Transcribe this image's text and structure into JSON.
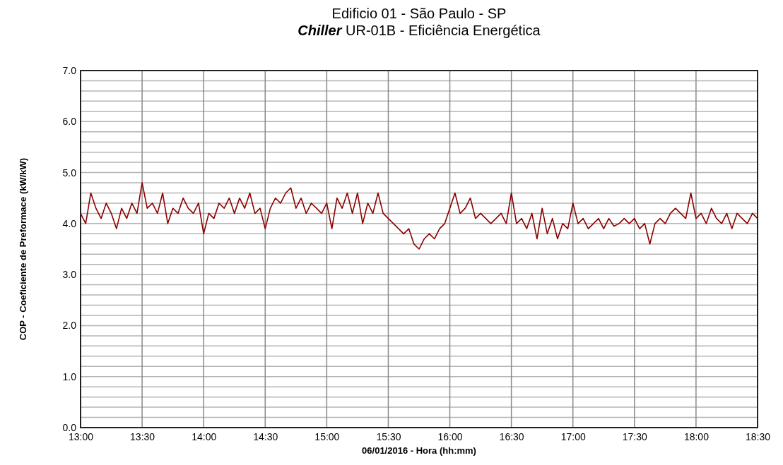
{
  "chart_data": {
    "type": "line",
    "title": "Edificio 01 - São Paulo - SP",
    "subtitle": "Chiller UR-01B - Eficiência Energética",
    "xlabel": "06/01/2016 -  Hora (hh:mm)",
    "ylabel": "COP - Coeficiente de Preformace (kW/kW)",
    "x": [
      13,
      13.0417,
      13.0833,
      13.125,
      13.1667,
      13.2083,
      13.25,
      13.2917,
      13.3333,
      13.375,
      13.4167,
      13.4583,
      13.5,
      13.5417,
      13.5833,
      13.625,
      13.6667,
      13.7083,
      13.75,
      13.7917,
      13.8333,
      13.875,
      13.9167,
      13.9583,
      14,
      14.0417,
      14.0833,
      14.125,
      14.1667,
      14.2083,
      14.25,
      14.2917,
      14.3333,
      14.375,
      14.4167,
      14.4583,
      14.5,
      14.5417,
      14.5833,
      14.625,
      14.6667,
      14.7083,
      14.75,
      14.7917,
      14.8333,
      14.875,
      14.9167,
      14.9583,
      15,
      15.0417,
      15.0833,
      15.125,
      15.1667,
      15.2083,
      15.25,
      15.2917,
      15.3333,
      15.375,
      15.4167,
      15.4583,
      15.5,
      15.5417,
      15.5833,
      15.625,
      15.6667,
      15.7083,
      15.75,
      15.7917,
      15.8333,
      15.875,
      15.9167,
      15.9583,
      16,
      16.0417,
      16.0833,
      16.125,
      16.1667,
      16.2083,
      16.25,
      16.2917,
      16.3333,
      16.375,
      16.4167,
      16.4583,
      16.5,
      16.5417,
      16.5833,
      16.625,
      16.6667,
      16.7083,
      16.75,
      16.7917,
      16.8333,
      16.875,
      16.9167,
      16.9583,
      17,
      17.0417,
      17.0833,
      17.125,
      17.1667,
      17.2083,
      17.25,
      17.2917,
      17.3333,
      17.375,
      17.4167,
      17.4583,
      17.5,
      17.5417,
      17.5833,
      17.625,
      17.6667,
      17.7083,
      17.75,
      17.7917,
      17.8333,
      17.875,
      17.9167,
      17.9583,
      18,
      18.0417,
      18.0833,
      18.125,
      18.1667,
      18.2083,
      18.25,
      18.2917,
      18.3333,
      18.375,
      18.4167,
      18.4583,
      18.5
    ],
    "series": [
      {
        "color": "#8b0000",
        "values": [
          4.2,
          4.0,
          4.6,
          4.3,
          4.1,
          4.4,
          4.2,
          3.9,
          4.3,
          4.1,
          4.4,
          4.2,
          4.8,
          4.3,
          4.4,
          4.2,
          4.6,
          4.0,
          4.3,
          4.2,
          4.5,
          4.3,
          4.2,
          4.4,
          3.8,
          4.2,
          4.1,
          4.4,
          4.3,
          4.5,
          4.2,
          4.5,
          4.3,
          4.6,
          4.2,
          4.3,
          3.9,
          4.3,
          4.5,
          4.4,
          4.6,
          4.7,
          4.3,
          4.5,
          4.2,
          4.4,
          4.3,
          4.2,
          4.4,
          3.9,
          4.5,
          4.3,
          4.6,
          4.2,
          4.6,
          4.0,
          4.4,
          4.2,
          4.6,
          4.2,
          4.1,
          4.0,
          3.9,
          3.8,
          3.9,
          3.6,
          3.5,
          3.7,
          3.8,
          3.7,
          3.9,
          4.0,
          4.3,
          4.6,
          4.2,
          4.3,
          4.5,
          4.1,
          4.2,
          4.1,
          4.0,
          4.1,
          4.2,
          4.0,
          4.6,
          4.0,
          4.1,
          3.9,
          4.2,
          3.7,
          4.3,
          3.8,
          4.1,
          3.7,
          4.0,
          3.9,
          4.4,
          4.0,
          4.1,
          3.9,
          4.0,
          4.1,
          3.9,
          4.1,
          3.95,
          4.0,
          4.1,
          4.0,
          4.1,
          3.9,
          4.0,
          3.6,
          4.0,
          4.1,
          4.0,
          4.2,
          4.3,
          4.2,
          4.1,
          4.6,
          4.1,
          4.2,
          4.0,
          4.3,
          4.1,
          4.0,
          4.2,
          3.9,
          4.2,
          4.1,
          4.0,
          4.2,
          4.1
        ]
      }
    ],
    "xlim": [
      13,
      18.5
    ],
    "xticks": [
      {
        "value": 13,
        "label": "13:00"
      },
      {
        "value": 13.5,
        "label": "13:30"
      },
      {
        "value": 14,
        "label": "14:00"
      },
      {
        "value": 14.5,
        "label": "14:30"
      },
      {
        "value": 15,
        "label": "15:00"
      },
      {
        "value": 15.5,
        "label": "15:30"
      },
      {
        "value": 16,
        "label": "16:00"
      },
      {
        "value": 16.5,
        "label": "16:30"
      },
      {
        "value": 17,
        "label": "17:00"
      },
      {
        "value": 17.5,
        "label": "17:30"
      },
      {
        "value": 18,
        "label": "18:00"
      },
      {
        "value": 18.5,
        "label": "18:30"
      }
    ],
    "ylim": [
      0,
      7
    ],
    "yticks": [
      {
        "value": 0,
        "label": "0.0"
      },
      {
        "value": 0.2,
        "label": null
      },
      {
        "value": 0.4,
        "label": null
      },
      {
        "value": 0.6,
        "label": null
      },
      {
        "value": 0.8,
        "label": null
      },
      {
        "value": 1,
        "label": "1.0"
      },
      {
        "value": 1.2,
        "label": null
      },
      {
        "value": 1.4,
        "label": null
      },
      {
        "value": 1.6,
        "label": null
      },
      {
        "value": 1.8,
        "label": null
      },
      {
        "value": 2,
        "label": "2.0"
      },
      {
        "value": 2.2,
        "label": null
      },
      {
        "value": 2.4,
        "label": null
      },
      {
        "value": 2.6,
        "label": null
      },
      {
        "value": 2.8,
        "label": null
      },
      {
        "value": 3,
        "label": "3.0"
      },
      {
        "value": 3.2,
        "label": null
      },
      {
        "value": 3.4,
        "label": null
      },
      {
        "value": 3.6,
        "label": null
      },
      {
        "value": 3.8,
        "label": null
      },
      {
        "value": 4,
        "label": "4.0"
      },
      {
        "value": 4.2,
        "label": null
      },
      {
        "value": 4.4,
        "label": null
      },
      {
        "value": 4.6,
        "label": null
      },
      {
        "value": 4.8,
        "label": null
      },
      {
        "value": 5,
        "label": "5.0"
      },
      {
        "value": 5.2,
        "label": null
      },
      {
        "value": 5.4,
        "label": null
      },
      {
        "value": 5.6,
        "label": null
      },
      {
        "value": 5.8,
        "label": null
      },
      {
        "value": 6,
        "label": "6.0"
      },
      {
        "value": 6.2,
        "label": null
      },
      {
        "value": 6.4,
        "label": null
      },
      {
        "value": 6.6,
        "label": null
      },
      {
        "value": 6.8,
        "label": null
      },
      {
        "value": 7,
        "label": "7.0"
      }
    ],
    "grid": true,
    "marker": "none",
    "line_style": "solid"
  }
}
